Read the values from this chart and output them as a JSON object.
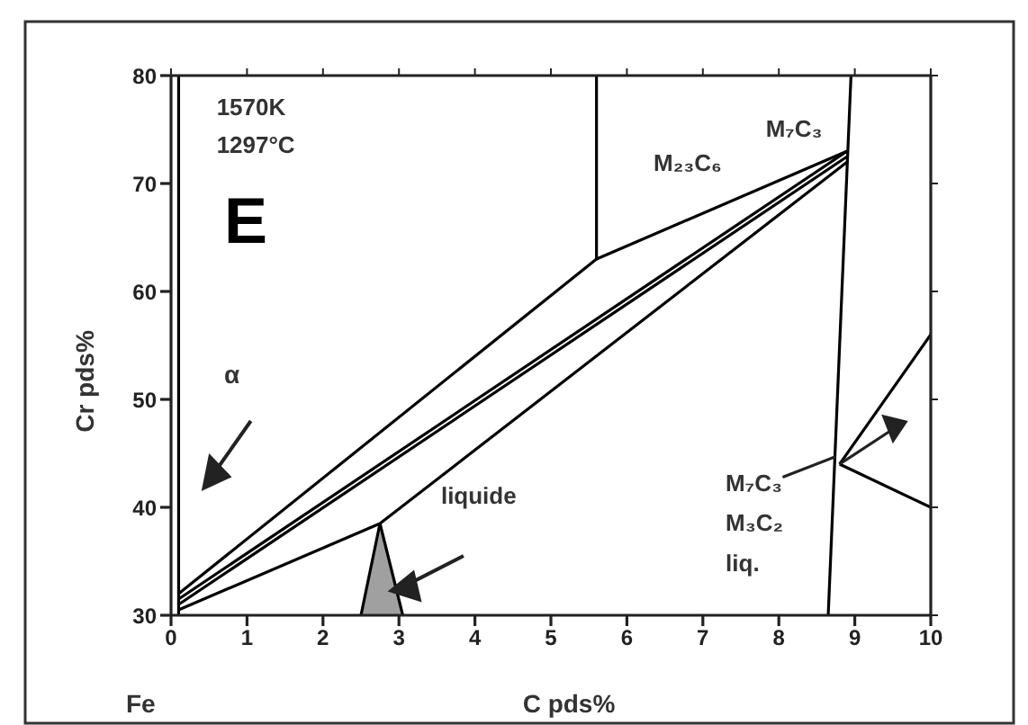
{
  "chart_data": {
    "type": "line",
    "xlabel": "C pds%",
    "ylabel": "Cr pds%",
    "xlim": [
      0,
      10
    ],
    "ylim": [
      30,
      80
    ],
    "xticks": [
      0,
      1,
      2,
      3,
      4,
      5,
      6,
      7,
      8,
      9,
      10
    ],
    "yticks": [
      30,
      40,
      50,
      60,
      70,
      80
    ],
    "marker": "none",
    "annotations": [
      "1570K",
      "1297°C",
      "E",
      "M₂₃C₆",
      "M₇C₃",
      "α",
      "liquide",
      "M₇C₃",
      "M₃C₂",
      "liq.",
      "Fe"
    ],
    "series": [
      {
        "type": "line",
        "color": "#000000",
        "x": [
          0.1,
          0.1
        ],
        "values": [
          30,
          80
        ]
      },
      {
        "type": "line",
        "color": "#000000",
        "x": [
          5.6,
          5.6,
          8.9
        ],
        "values": [
          80,
          63,
          73
        ]
      },
      {
        "type": "line",
        "color": "#000000",
        "x": [
          8.95,
          8.65
        ],
        "values": [
          80,
          30
        ]
      },
      {
        "type": "line",
        "color": "#000000",
        "x": [
          0.1,
          5.6
        ],
        "values": [
          32,
          63
        ]
      },
      {
        "type": "line",
        "color": "#000000",
        "x": [
          0.1,
          8.9
        ],
        "values": [
          31.5,
          73
        ]
      },
      {
        "type": "line",
        "color": "#000000",
        "x": [
          0.1,
          8.9
        ],
        "values": [
          31,
          72.5
        ]
      },
      {
        "type": "line",
        "color": "#000000",
        "x": [
          0.1,
          2.75,
          8.9
        ],
        "values": [
          30.5,
          38.5,
          72
        ]
      },
      {
        "type": "line",
        "color": "#000000",
        "x": [
          8.8,
          10
        ],
        "values": [
          44,
          56
        ]
      },
      {
        "type": "line",
        "color": "#000000",
        "x": [
          8.8,
          10
        ],
        "values": [
          44,
          40
        ]
      },
      {
        "type": "area",
        "color": "#a0a0a0",
        "x": [
          2.5,
          2.75,
          3.05
        ],
        "values": [
          30,
          38.5,
          30
        ]
      }
    ]
  }
}
